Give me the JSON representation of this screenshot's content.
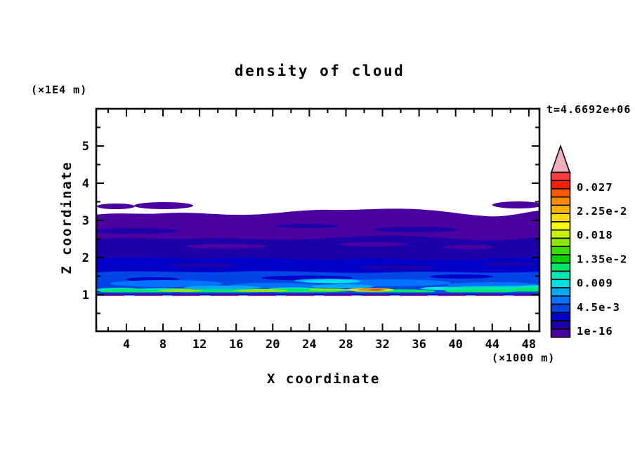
{
  "figure": {
    "title": "density of cloud",
    "annotation": "t=4.6692e+06",
    "y_axis_unit": "(×1E4 m)",
    "x_axis_unit": "(×1000 m)",
    "x_label": "X coordinate",
    "y_label": "Z coordinate"
  },
  "axes": {
    "x_ticks_major": [
      4,
      8,
      12,
      16,
      20,
      24,
      28,
      32,
      36,
      40,
      44,
      48
    ],
    "x_ticks_minor": [
      2,
      6,
      10,
      14,
      18,
      22,
      26,
      30,
      34,
      38,
      42,
      46
    ],
    "y_ticks_major": [
      1,
      2,
      3,
      4,
      5
    ],
    "y_ticks_minor": [
      0.5,
      1.5,
      2.5,
      3.5,
      4.5,
      5.5
    ]
  },
  "colorbar": {
    "labels_bottom_to_top": [
      "1e-16",
      "4.5e-3",
      "0.009",
      "1.35e-2",
      "0.018",
      "2.25e-2",
      "0.027"
    ],
    "colors_top_to_bottom": [
      "#fa3c3c",
      "#ff1e00",
      "#ff5a00",
      "#ff8c00",
      "#ffb400",
      "#ffdc00",
      "#ffff00",
      "#c8f000",
      "#8ce600",
      "#3cdc00",
      "#00d200",
      "#00e669",
      "#00e6b4",
      "#00e1e1",
      "#00aaff",
      "#0073ff",
      "#0046e6",
      "#0000c8",
      "#1e00aa",
      "#4b00a0"
    ],
    "overflow_arrow_color": "#f2aebb"
  },
  "field_colors": {
    "purple": "#4b00a0",
    "navy": "#1e00aa",
    "darkblue": "#0000c8",
    "blue": "#0046e6",
    "brightblue": "#0073ff",
    "sky": "#00aaff",
    "cyan": "#00e1e1",
    "teal": "#00e6b4",
    "green": "#00e669",
    "ygreen": "#8ce600",
    "yellow": "#ffe100",
    "orange": "#ff8c00",
    "redorange": "#ff4600",
    "underline_blue": "#0050e6"
  },
  "chart_data": {
    "type": "heatmap",
    "title": "density of cloud",
    "xlabel": "X coordinate (×1000 m)",
    "ylabel": "Z coordinate (×1E4 m)",
    "xlim": [
      0,
      50
    ],
    "ylim": [
      0,
      6
    ],
    "x_ticks": [
      4,
      8,
      12,
      16,
      20,
      24,
      28,
      32,
      36,
      40,
      44,
      48
    ],
    "y_ticks": [
      1,
      2,
      3,
      4,
      5
    ],
    "annotation": "t=4.6692e+06",
    "colorbar_labeled_levels": [
      "1e-16",
      "4.5e-3",
      "0.009",
      "1.35e-2",
      "0.018",
      "2.25e-2",
      "0.027"
    ],
    "colorbar_level_step": 0.0015,
    "colorbar_range": [
      1e-16,
      0.03
    ],
    "legend_position": "right",
    "grid": false,
    "description": "Horizontally stratified cloud-density field spanning the full x domain. Clear (white) above z≈3.4 and below z≈1.0. Density increases downward from the cloud top to a bright maximum band just above cloud base.",
    "layers_top_to_bottom": [
      {
        "z_range": [
          3.4,
          6.0
        ],
        "value": "0 (clear air, white)",
        "color": "#ffffff"
      },
      {
        "z_range": [
          3.3,
          3.45
        ],
        "detail": "detached purple fragments near x≈1-11 and x≈44-50",
        "color": "#4b00a0"
      },
      {
        "z_range": [
          2.45,
          3.4
        ],
        "value": "1e-16 – 1.5e-3",
        "color": "#4b00a0"
      },
      {
        "z_range": [
          2.05,
          2.45
        ],
        "value": "1.5e-3 – 3e-3",
        "color": "#1e00aa"
      },
      {
        "z_range": [
          1.75,
          2.05
        ],
        "value": "3e-3 – 4.5e-3",
        "color": "#0000c8"
      },
      {
        "z_range": [
          1.45,
          1.75
        ],
        "value": "4.5e-3 – 7.5e-3 (streaky)",
        "color": "#0046e6"
      },
      {
        "z_range": [
          1.2,
          1.45
        ],
        "value": "7.5e-3 – 9e-3 (streaky)",
        "color": "#0073ff"
      },
      {
        "z_range": [
          1.1,
          1.25
        ],
        "value": "9e-3 – 1.35e-2 cyan/teal streaks, teal band at x≈37-50",
        "color": "#00e1e1"
      },
      {
        "z_range": [
          1.0,
          1.12
        ],
        "value": "1.35e-2 – 1.8e-2 green base band; local hotspot ~0.024-0.027 (yellow-orange-red) near x≈28-32",
        "color": "#00e669"
      },
      {
        "z_range": [
          0.0,
          1.0
        ],
        "value": "0 (clear air, white)",
        "color": "#ffffff"
      }
    ]
  }
}
